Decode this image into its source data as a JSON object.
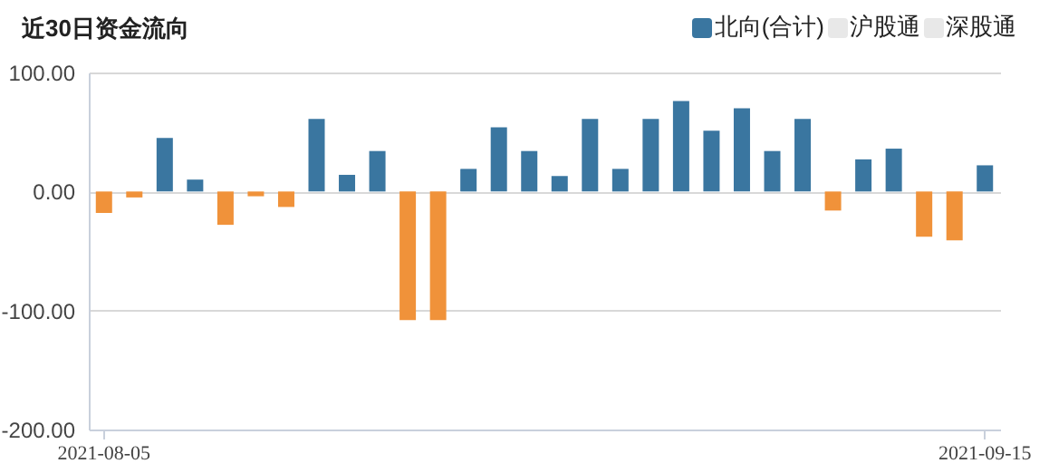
{
  "chart_data": {
    "type": "bar",
    "title": "近30日资金流向",
    "categories": [
      "2021-08-05",
      null,
      null,
      null,
      null,
      null,
      null,
      null,
      null,
      null,
      null,
      null,
      null,
      null,
      null,
      null,
      null,
      null,
      null,
      null,
      null,
      null,
      null,
      null,
      null,
      null,
      null,
      null,
      null,
      "2021-09-15"
    ],
    "series": [
      {
        "name": "北向(合计)",
        "color": "#3a76a0",
        "values": [
          -18,
          -5,
          45,
          10,
          -28,
          -4,
          -13,
          61,
          14,
          34,
          -108,
          -108,
          19,
          54,
          34,
          13,
          61,
          19,
          61,
          76,
          51,
          70,
          34,
          61,
          -16,
          27,
          36,
          -38,
          -41,
          22
        ],
        "colors": [
          "#f0923a",
          "#f0923a",
          "#3a76a0",
          "#3a76a0",
          "#f0923a",
          "#f0923a",
          "#f0923a",
          "#3a76a0",
          "#3a76a0",
          "#3a76a0",
          "#f0923a",
          "#f0923a",
          "#3a76a0",
          "#3a76a0",
          "#3a76a0",
          "#3a76a0",
          "#3a76a0",
          "#3a76a0",
          "#3a76a0",
          "#3a76a0",
          "#3a76a0",
          "#3a76a0",
          "#3a76a0",
          "#3a76a0",
          "#f0923a",
          "#3a76a0",
          "#3a76a0",
          "#f0923a",
          "#f0923a",
          "#3a76a0"
        ]
      },
      {
        "name": "沪股通",
        "color": "#e8e8e8",
        "values": [
          null,
          null,
          null,
          null,
          null,
          null,
          null,
          null,
          null,
          null,
          null,
          null,
          null,
          null,
          null,
          null,
          null,
          null,
          null,
          null,
          null,
          null,
          null,
          null,
          null,
          null,
          null,
          null,
          null,
          null
        ]
      },
      {
        "name": "深股通",
        "color": "#e8e8e8",
        "values": [
          null,
          null,
          null,
          null,
          null,
          null,
          null,
          null,
          null,
          null,
          null,
          null,
          null,
          null,
          null,
          null,
          null,
          null,
          null,
          null,
          null,
          null,
          null,
          null,
          null,
          null,
          null,
          null,
          null,
          null
        ]
      }
    ],
    "ylim": [
      -200,
      100
    ],
    "yticks": [
      {
        "value": -200,
        "label": "-200.00"
      },
      {
        "value": -100,
        "label": "-100.00"
      },
      {
        "value": 0,
        "label": "0.00"
      },
      {
        "value": 100,
        "label": "100.00"
      }
    ],
    "grid": "y",
    "legend": "top right"
  }
}
